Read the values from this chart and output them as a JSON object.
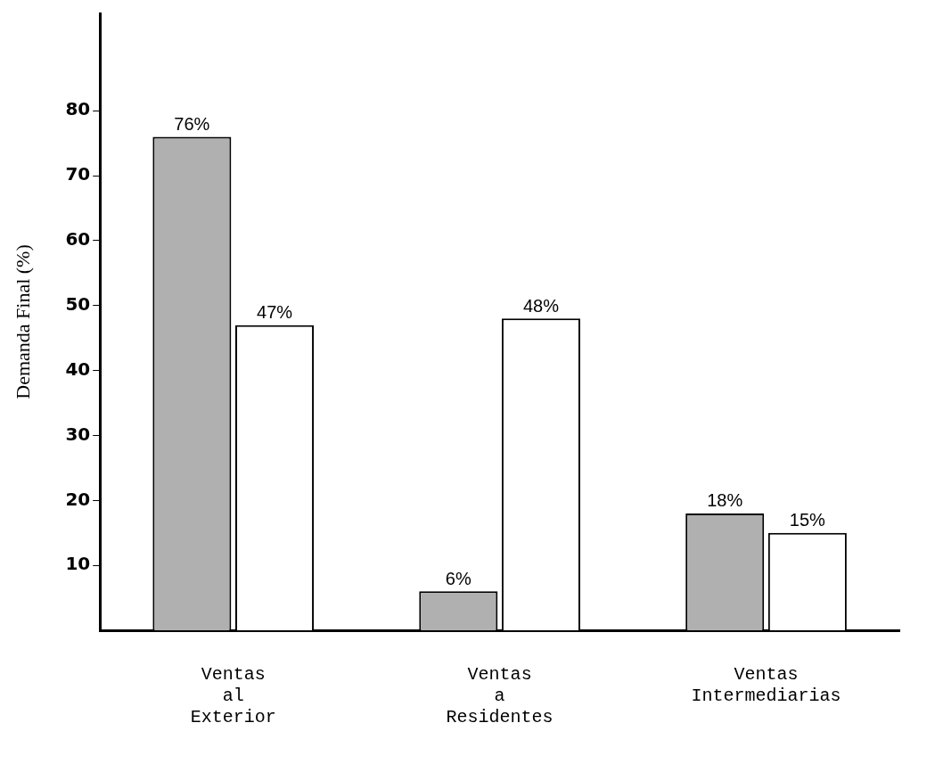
{
  "chart_data": {
    "type": "bar",
    "ylabel": "Demanda Final (%)",
    "categories": [
      "Ventas\nal\nExterior",
      "Ventas\na\nResidentes",
      "Ventas\nIntermediarias"
    ],
    "series": [
      {
        "color": "#b0b0b0",
        "values": [
          76,
          6,
          18
        ],
        "value_labels": [
          "76%",
          "6%",
          "18%"
        ]
      },
      {
        "color": "#ffffff",
        "values": [
          47,
          48,
          15
        ],
        "value_labels": [
          "47%",
          "48%",
          "15%"
        ]
      }
    ],
    "ylim": [
      0,
      95
    ],
    "yticks": [
      10,
      20,
      30,
      40,
      50,
      60,
      70,
      80
    ],
    "legend": false
  }
}
